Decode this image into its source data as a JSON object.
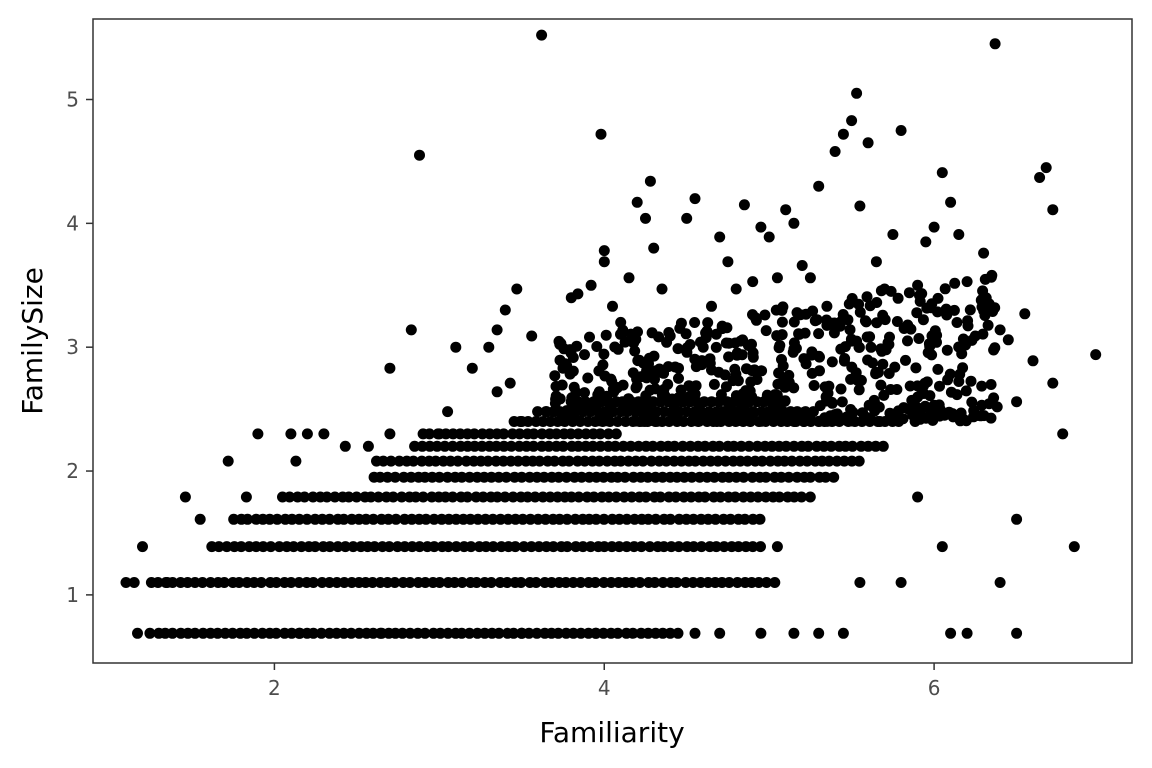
{
  "chart_data": {
    "type": "scatter",
    "title": "",
    "xlabel": "Familiarity",
    "ylabel": "FamilySize",
    "xlim": [
      0.9,
      7.2
    ],
    "ylim": [
      0.45,
      5.65
    ],
    "x_ticks": [
      2,
      4,
      6
    ],
    "y_ticks": [
      1,
      2,
      3,
      4,
      5
    ],
    "grid": false,
    "legend": "none",
    "point_color": "#000000",
    "panel_border_color": "#333333",
    "series": [
      {
        "points": [
          [
            1.1,
            1.1
          ],
          [
            1.2,
            1.39
          ],
          [
            1.17,
            0.69
          ],
          [
            1.15,
            1.1
          ],
          [
            1.35,
            1.1
          ],
          [
            1.46,
            1.79
          ],
          [
            1.55,
            1.61
          ],
          [
            1.72,
            2.08
          ],
          [
            1.83,
            1.79
          ],
          [
            1.9,
            2.3
          ],
          [
            2.1,
            2.3
          ],
          [
            2.2,
            2.3
          ],
          [
            2.3,
            2.3
          ],
          [
            2.13,
            2.08
          ],
          [
            2.43,
            2.2
          ],
          [
            2.57,
            2.2
          ],
          [
            2.7,
            2.3
          ],
          [
            2.7,
            2.83
          ],
          [
            2.85,
            2.2
          ],
          [
            2.88,
            4.55
          ],
          [
            2.83,
            3.14
          ],
          [
            3.0,
            2.3
          ],
          [
            3.05,
            2.48
          ],
          [
            3.1,
            3.0
          ],
          [
            3.2,
            2.83
          ],
          [
            3.3,
            3.0
          ],
          [
            3.35,
            3.14
          ],
          [
            3.4,
            3.3
          ],
          [
            3.47,
            3.47
          ],
          [
            3.35,
            2.64
          ],
          [
            3.43,
            2.71
          ],
          [
            3.5,
            2.4
          ],
          [
            3.56,
            3.09
          ],
          [
            3.62,
            5.52
          ],
          [
            3.65,
            2.48
          ],
          [
            3.7,
            2.77
          ],
          [
            3.75,
            2.83
          ],
          [
            3.8,
            3.4
          ],
          [
            3.84,
            3.43
          ],
          [
            3.88,
            2.94
          ],
          [
            3.92,
            3.5
          ],
          [
            3.97,
            2.64
          ],
          [
            4.0,
            3.78
          ],
          [
            4.0,
            3.69
          ],
          [
            3.98,
            4.72
          ],
          [
            4.05,
            3.33
          ],
          [
            4.1,
            3.2
          ],
          [
            4.15,
            3.56
          ],
          [
            4.2,
            4.17
          ],
          [
            4.25,
            4.04
          ],
          [
            4.28,
            4.34
          ],
          [
            4.3,
            3.8
          ],
          [
            4.35,
            3.47
          ],
          [
            4.4,
            3.09
          ],
          [
            4.45,
            2.83
          ],
          [
            4.5,
            4.04
          ],
          [
            4.55,
            4.2
          ],
          [
            4.6,
            3.0
          ],
          [
            4.65,
            3.33
          ],
          [
            4.7,
            3.89
          ],
          [
            4.75,
            3.69
          ],
          [
            4.8,
            3.47
          ],
          [
            4.85,
            4.15
          ],
          [
            4.9,
            3.53
          ],
          [
            4.95,
            3.97
          ],
          [
            5.0,
            3.89
          ],
          [
            5.05,
            3.56
          ],
          [
            5.1,
            4.11
          ],
          [
            5.15,
            4.0
          ],
          [
            5.2,
            3.66
          ],
          [
            5.25,
            3.56
          ],
          [
            5.3,
            4.3
          ],
          [
            5.35,
            3.33
          ],
          [
            5.4,
            4.58
          ],
          [
            5.45,
            4.72
          ],
          [
            5.5,
            4.83
          ],
          [
            5.53,
            5.05
          ],
          [
            5.55,
            4.14
          ],
          [
            5.6,
            4.65
          ],
          [
            5.65,
            3.69
          ],
          [
            5.7,
            3.47
          ],
          [
            5.75,
            3.91
          ],
          [
            5.8,
            4.75
          ],
          [
            5.85,
            3.44
          ],
          [
            5.9,
            3.5
          ],
          [
            5.95,
            3.85
          ],
          [
            6.0,
            3.97
          ],
          [
            6.05,
            4.41
          ],
          [
            6.1,
            4.17
          ],
          [
            6.15,
            3.91
          ],
          [
            6.2,
            3.53
          ],
          [
            6.25,
            3.09
          ],
          [
            6.3,
            3.76
          ],
          [
            6.35,
            3.58
          ],
          [
            6.37,
            5.45
          ],
          [
            6.4,
            3.14
          ],
          [
            6.45,
            3.06
          ],
          [
            6.5,
            2.56
          ],
          [
            6.55,
            3.27
          ],
          [
            6.6,
            2.89
          ],
          [
            6.64,
            4.37
          ],
          [
            6.68,
            4.45
          ],
          [
            6.72,
            4.11
          ],
          [
            6.72,
            2.71
          ],
          [
            6.78,
            2.3
          ],
          [
            6.85,
            1.39
          ],
          [
            6.98,
            2.94
          ],
          [
            6.5,
            0.69
          ],
          [
            6.5,
            1.61
          ],
          [
            6.4,
            1.1
          ],
          [
            6.2,
            0.69
          ],
          [
            6.1,
            0.69
          ],
          [
            6.05,
            1.39
          ],
          [
            5.9,
            1.79
          ],
          [
            5.8,
            1.1
          ],
          [
            5.55,
            1.1
          ],
          [
            5.45,
            0.69
          ],
          [
            5.3,
            0.69
          ],
          [
            5.15,
            0.69
          ],
          [
            5.05,
            1.39
          ],
          [
            4.95,
            0.69
          ],
          [
            4.7,
            0.69
          ],
          [
            4.55,
            0.69
          ],
          [
            3.95,
            0.69
          ],
          [
            3.5,
            0.69
          ],
          [
            2.65,
            0.69
          ],
          [
            2.15,
            0.69
          ]
        ],
        "bands": [
          {
            "y": 0.69,
            "x_from": 1.25,
            "x_to": 4.48
          },
          {
            "y": 1.1,
            "x_from": 1.25,
            "x_to": 5.05
          },
          {
            "y": 1.39,
            "x_from": 1.62,
            "x_to": 4.95
          },
          {
            "y": 1.61,
            "x_from": 1.75,
            "x_to": 4.95
          },
          {
            "y": 1.79,
            "x_from": 2.05,
            "x_to": 5.25
          },
          {
            "y": 1.95,
            "x_from": 2.6,
            "x_to": 5.4
          },
          {
            "y": 2.08,
            "x_from": 2.62,
            "x_to": 5.55
          },
          {
            "y": 2.2,
            "x_from": 2.9,
            "x_to": 5.7
          },
          {
            "y": 2.3,
            "x_from": 2.9,
            "x_to": 4.1
          },
          {
            "y": 2.4,
            "x_from": 3.45,
            "x_to": 5.8
          },
          {
            "y": 2.48,
            "x_from": 3.6,
            "x_to": 5.3
          },
          {
            "y": 2.56,
            "x_from": 3.8,
            "x_to": 5.1
          }
        ],
        "clusters": [
          {
            "x": [
              3.7,
              6.4
            ],
            "y": [
              2.4,
              3.6
            ],
            "n": 520
          }
        ]
      }
    ]
  }
}
